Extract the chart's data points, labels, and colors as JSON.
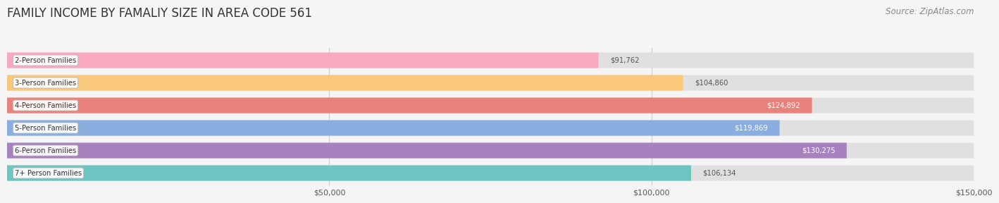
{
  "title": "FAMILY INCOME BY FAMALIY SIZE IN AREA CODE 561",
  "source": "Source: ZipAtlas.com",
  "categories": [
    "2-Person Families",
    "3-Person Families",
    "4-Person Families",
    "5-Person Families",
    "6-Person Families",
    "7+ Person Families"
  ],
  "values": [
    91762,
    104860,
    124892,
    119869,
    130275,
    106134
  ],
  "bar_colors": [
    "#F9A8C0",
    "#F9C87A",
    "#E8827A",
    "#8AAEE0",
    "#A882BE",
    "#6DC4C0"
  ],
  "bg_color": "#f5f5f5",
  "bar_bg_color": "#e0e0e0",
  "xlim": [
    0,
    150000
  ],
  "xticks": [
    50000,
    100000,
    150000
  ],
  "xticklabels": [
    "$50,000",
    "$100,000",
    "$150,000"
  ],
  "value_labels": [
    "$91,762",
    "$104,860",
    "$124,892",
    "$119,869",
    "$130,275",
    "$106,134"
  ],
  "value_inside": [
    false,
    false,
    true,
    true,
    true,
    false
  ],
  "title_fontsize": 12,
  "source_fontsize": 8.5,
  "bar_height": 0.68,
  "figure_width": 14.06,
  "figure_height": 3.05
}
